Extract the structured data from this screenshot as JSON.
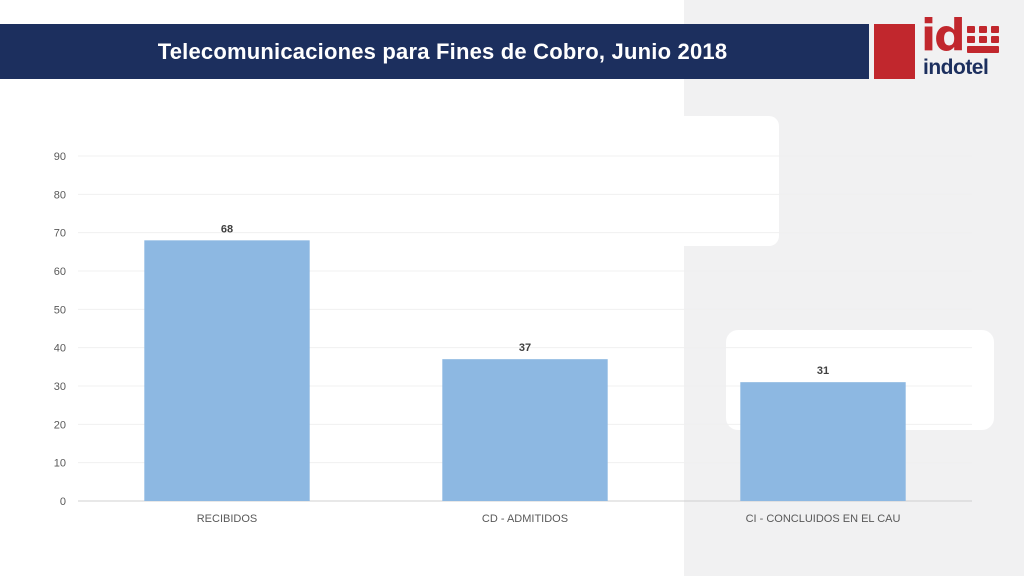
{
  "header": {
    "title": "Telecomunicaciones para Fines de Cobro, Junio 2018"
  },
  "logo": {
    "mark": "id",
    "word": "indotel",
    "brand_red": "#c1272d",
    "brand_navy": "#1c2f5e"
  },
  "chart_data": {
    "type": "bar",
    "categories": [
      "RECIBIDOS",
      "CD - ADMITIDOS",
      "CI - CONCLUIDOS EN EL CAU"
    ],
    "values": [
      68,
      37,
      31
    ],
    "data_labels": [
      "68",
      "37",
      "31"
    ],
    "title": "",
    "xlabel": "",
    "ylabel": "",
    "ylim": [
      0,
      90
    ],
    "yticks": [
      0,
      10,
      20,
      30,
      40,
      50,
      60,
      70,
      80,
      90
    ],
    "ytick_labels": [
      "0",
      "10",
      "20",
      "30",
      "40",
      "50",
      "60",
      "70",
      "80",
      "90"
    ],
    "grid": true,
    "legend": "none",
    "bar_color": "#8db8e2"
  }
}
